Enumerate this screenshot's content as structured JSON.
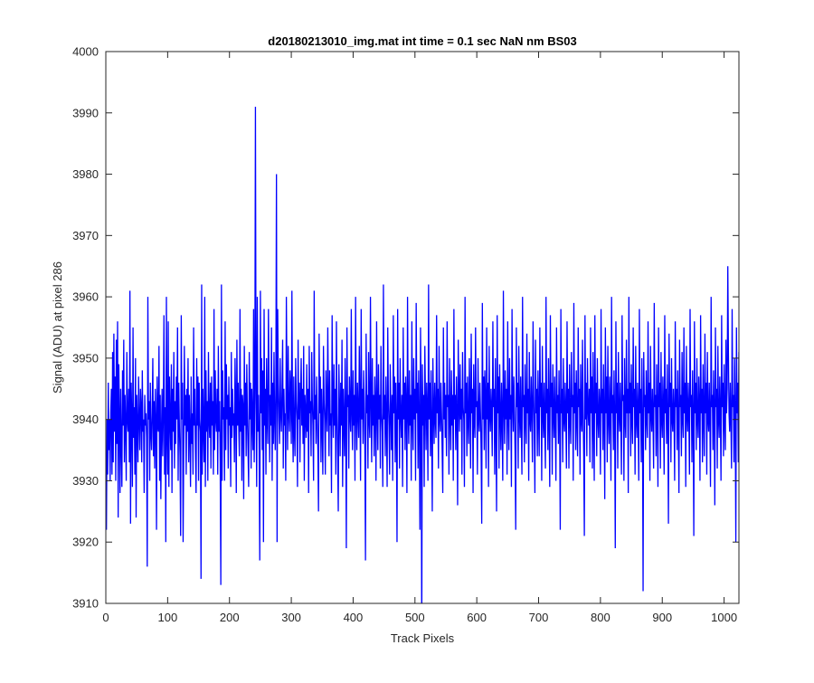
{
  "chart_data": {
    "type": "line",
    "title": "d20180213010_img.mat int time = 0.1 sec  NaN nm BS03",
    "xlabel": "Track Pixels",
    "ylabel": "Signal (ADU) at pixel 286",
    "xlim": [
      0,
      1024
    ],
    "ylim": [
      3910,
      4000
    ],
    "xticks": [
      0,
      100,
      200,
      300,
      400,
      500,
      600,
      700,
      800,
      900,
      1000
    ],
    "yticks": [
      3910,
      3920,
      3930,
      3940,
      3950,
      3960,
      3970,
      3980,
      3990,
      4000
    ],
    "grid": false,
    "legend": "none",
    "series": [
      {
        "color": "#0000ff",
        "x_start": 1,
        "x_step": 1,
        "values": [
          3922,
          3940,
          3931,
          3946,
          3935,
          3940,
          3930,
          3941,
          3945,
          3931,
          3951,
          3933,
          3954,
          3938,
          3947,
          3930,
          3953,
          3936,
          3956,
          3924,
          3949,
          3941,
          3928,
          3945,
          3936,
          3929,
          3948,
          3939,
          3953,
          3933,
          3944,
          3939,
          3930,
          3951,
          3940,
          3938,
          3945,
          3933,
          3961,
          3923,
          3946,
          3940,
          3929,
          3955,
          3937,
          3942,
          3931,
          3950,
          3924,
          3944,
          3939,
          3933,
          3947,
          3940,
          3935,
          3945,
          3942,
          3933,
          3948,
          3938,
          3940,
          3928,
          3944,
          3939,
          3941,
          3937,
          3916,
          3960,
          3940,
          3943,
          3930,
          3946,
          3938,
          3935,
          3941,
          3950,
          3934,
          3943,
          3932,
          3945,
          3940,
          3922,
          3947,
          3939,
          3938,
          3952,
          3930,
          3944,
          3927,
          3938,
          3945,
          3934,
          3941,
          3957,
          3931,
          3942,
          3920,
          3960,
          3938,
          3931,
          3956,
          3929,
          3947,
          3940,
          3935,
          3949,
          3928,
          3945,
          3938,
          3951,
          3932,
          3943,
          3936,
          3947,
          3940,
          3955,
          3930,
          3946,
          3939,
          3934,
          3921,
          3957,
          3940,
          3946,
          3920,
          3935,
          3952,
          3939,
          3944,
          3931,
          3945,
          3938,
          3950,
          3933,
          3944,
          3938,
          3929,
          3947,
          3936,
          3941,
          3931,
          3955,
          3939,
          3945,
          3935,
          3928,
          3950,
          3939,
          3947,
          3930,
          3946,
          3940,
          3938,
          3914,
          3962,
          3931,
          3945,
          3938,
          3933,
          3960,
          3929,
          3948,
          3938,
          3943,
          3930,
          3951,
          3940,
          3937,
          3946,
          3932,
          3947,
          3939,
          3943,
          3931,
          3958,
          3935,
          3948,
          3940,
          3938,
          3945,
          3931,
          3952,
          3938,
          3943,
          3933,
          3913,
          3962,
          3930,
          3948,
          3940,
          3942,
          3930,
          3956,
          3935,
          3949,
          3940,
          3944,
          3932,
          3947,
          3939,
          3942,
          3929,
          3951,
          3937,
          3945,
          3939,
          3941,
          3933,
          3950,
          3943,
          3928,
          3953,
          3939,
          3946,
          3939,
          3934,
          3958,
          3938,
          3945,
          3930,
          3944,
          3942,
          3927,
          3952,
          3939,
          3946,
          3934,
          3949,
          3940,
          3935,
          3929,
          3951,
          3940,
          3946,
          3932,
          3945,
          3940,
          3935,
          3958,
          3933,
          3945,
          3938,
          3943,
          3929,
          3960,
          3938,
          3944,
          3935,
          3917,
          3961,
          3941,
          3950,
          3935,
          3948,
          3920,
          3958,
          3939,
          3945,
          3931,
          3950,
          3940,
          3936,
          3958,
          3946,
          3933,
          3944,
          3939,
          3955,
          3930,
          3946,
          3936,
          3951,
          3940,
          3935,
          3946,
          3941,
          3920,
          3958,
          3946,
          3940,
          3936,
          3950,
          3941,
          3938,
          3945,
          3953,
          3932,
          3945,
          3939,
          3941,
          3930,
          3960,
          3946,
          3935,
          3952,
          3941,
          3938,
          3948,
          3944,
          3936,
          3961,
          3940,
          3933,
          3947,
          3938,
          3934,
          3950,
          3943,
          3940,
          3929,
          3953,
          3940,
          3946,
          3933,
          3944,
          3950,
          3939,
          3945,
          3936,
          3952,
          3930,
          3944,
          3941,
          3937,
          3949,
          3938,
          3945,
          3928,
          3952,
          3941,
          3943,
          3934,
          3951,
          3943,
          3939,
          3930,
          3961,
          3940,
          3944,
          3936,
          3947,
          3940,
          3935,
          3925,
          3954,
          3941,
          3947,
          3933,
          3945,
          3939,
          3931,
          3952,
          3943,
          3940,
          3931,
          3948,
          3942,
          3938,
          3955,
          3944,
          3934,
          3948,
          3939,
          3941,
          3928,
          3957,
          3943,
          3937,
          3949,
          3939,
          3945,
          3931,
          3956,
          3941,
          3934,
          3925,
          3949,
          3942,
          3934,
          3946,
          3939,
          3953,
          3929,
          3945,
          3940,
          3934,
          3950,
          3941,
          3919,
          3955,
          3942,
          3944,
          3932,
          3947,
          3941,
          3938,
          3958,
          3941,
          3935,
          3948,
          3939,
          3944,
          3930,
          3960,
          3941,
          3935,
          3946,
          3941,
          3937,
          3952,
          3942,
          3930,
          3958,
          3940,
          3945,
          3936,
          3948,
          3943,
          3935,
          3917,
          3954,
          3941,
          3944,
          3932,
          3951,
          3940,
          3937,
          3960,
          3943,
          3933,
          3950,
          3939,
          3944,
          3934,
          3947,
          3942,
          3930,
          3956,
          3941,
          3935,
          3949,
          3940,
          3944,
          3932,
          3952,
          3941,
          3938,
          3929,
          3962,
          3940,
          3944,
          3934,
          3947,
          3940,
          3929,
          3955,
          3943,
          3939,
          3931,
          3949,
          3942,
          3935,
          3944,
          3930,
          3957,
          3941,
          3947,
          3933,
          3946,
          3939,
          3920,
          3958,
          3940,
          3946,
          3932,
          3950,
          3941,
          3937,
          3944,
          3929,
          3955,
          3940,
          3946,
          3935,
          3947,
          3942,
          3928,
          3960,
          3941,
          3936,
          3948,
          3939,
          3944,
          3930,
          3956,
          3940,
          3935,
          3950,
          3940,
          3945,
          3930,
          3959,
          3941,
          3946,
          3932,
          3948,
          3940,
          3922,
          3955,
          3943,
          3938,
          3949,
          3939,
          3944,
          3929,
          3952,
          3943,
          3935,
          3946,
          3941,
          3930,
          3962,
          3940,
          3946,
          3934,
          3948,
          3939,
          3925,
          3950,
          3942,
          3936,
          3946,
          3940,
          3937,
          3957,
          3941,
          3945,
          3932,
          3952,
          3940,
          3938,
          3946,
          3941,
          3935,
          3928,
          3955,
          3940,
          3946,
          3937,
          3944,
          3934,
          3956,
          3942,
          3944,
          3931,
          3950,
          3941,
          3935,
          3948,
          3939,
          3944,
          3930,
          3958,
          3940,
          3944,
          3935,
          3947,
          3941,
          3926,
          3953,
          3943,
          3938,
          3949,
          3940,
          3945,
          3931,
          3951,
          3942,
          3940,
          3929,
          3960,
          3941,
          3946,
          3934,
          3947,
          3940,
          3936,
          3950,
          3943,
          3932,
          3954,
          3941,
          3945,
          3928,
          3949,
          3940,
          3937,
          3955,
          3942,
          3943,
          3931,
          3950,
          3940,
          3938,
          3946,
          3941,
          3935,
          3923,
          3959,
          3940,
          3947,
          3935,
          3948,
          3943,
          3932,
          3955,
          3940,
          3946,
          3929,
          3952,
          3941,
          3938,
          3945,
          3941,
          3934,
          3956,
          3942,
          3945,
          3931,
          3950,
          3939,
          3925,
          3957,
          3941,
          3947,
          3932,
          3949,
          3941,
          3935,
          3946,
          3940,
          3930,
          3961,
          3942,
          3936,
          3948,
          3940,
          3945,
          3931,
          3956,
          3941,
          3935,
          3950,
          3940,
          3944,
          3929,
          3958,
          3943,
          3938,
          3947,
          3941,
          3934,
          3922,
          3955,
          3942,
          3946,
          3932,
          3952,
          3941,
          3937,
          3947,
          3939,
          3931,
          3960,
          3942,
          3944,
          3933,
          3949,
          3940,
          3936,
          3954,
          3941,
          3945,
          3930,
          3951,
          3940,
          3938,
          3947,
          3941,
          3933,
          3956,
          3944,
          3938,
          3928,
          3953,
          3941,
          3945,
          3934,
          3948,
          3940,
          3934,
          3955,
          3942,
          3946,
          3930,
          3952,
          3941,
          3937,
          3946,
          3939,
          3932,
          3960,
          3941,
          3945,
          3935,
          3950,
          3940,
          3929,
          3957,
          3942,
          3946,
          3931,
          3949,
          3941,
          3937,
          3947,
          3940,
          3930,
          3955,
          3941,
          3944,
          3936,
          3948,
          3940,
          3922,
          3958,
          3941,
          3945,
          3933,
          3950,
          3940,
          3938,
          3946,
          3941,
          3932,
          3956,
          3941,
          3945,
          3932,
          3949,
          3940,
          3936,
          3951,
          3942,
          3944,
          3930,
          3959,
          3941,
          3946,
          3935,
          3948,
          3940,
          3934,
          3955,
          3942,
          3945,
          3931,
          3949,
          3940,
          3938,
          3953,
          3941,
          3934,
          3921,
          3957,
          3940,
          3946,
          3934,
          3950,
          3942,
          3939,
          3945,
          3933,
          3955,
          3941,
          3947,
          3932,
          3951,
          3940,
          3930,
          3957,
          3941,
          3946,
          3934,
          3950,
          3940,
          3937,
          3945,
          3942,
          3931,
          3958,
          3941,
          3945,
          3935,
          3949,
          3940,
          3927,
          3955,
          3941,
          3947,
          3933,
          3952,
          3940,
          3936,
          3947,
          3942,
          3930,
          3960,
          3941,
          3944,
          3935,
          3948,
          3940,
          3919,
          3956,
          3941,
          3946,
          3932,
          3951,
          3941,
          3938,
          3946,
          3940,
          3931,
          3957,
          3943,
          3944,
          3930,
          3950,
          3940,
          3937,
          3953,
          3941,
          3945,
          3928,
          3960,
          3941,
          3946,
          3934,
          3949,
          3940,
          3936,
          3955,
          3942,
          3945,
          3931,
          3952,
          3940,
          3937,
          3946,
          3941,
          3930,
          3958,
          3941,
          3945,
          3933,
          3950,
          3940,
          3912,
          3951,
          3942,
          3944,
          3935,
          3948,
          3940,
          3937,
          3956,
          3941,
          3946,
          3930,
          3952,
          3941,
          3938,
          3945,
          3940,
          3932,
          3959,
          3942,
          3944,
          3934,
          3949,
          3941,
          3929,
          3955,
          3942,
          3946,
          3932,
          3951,
          3940,
          3937,
          3947,
          3942,
          3931,
          3957,
          3941,
          3945,
          3936,
          3949,
          3940,
          3923,
          3954,
          3942,
          3946,
          3933,
          3950,
          3940,
          3938,
          3945,
          3941,
          3930,
          3956,
          3942,
          3945,
          3935,
          3948,
          3940,
          3928,
          3953,
          3942,
          3944,
          3934,
          3951,
          3940,
          3937,
          3955,
          3941,
          3946,
          3929,
          3952,
          3941,
          3938,
          3946,
          3941,
          3931,
          3958,
          3942,
          3944,
          3933,
          3948,
          3940,
          3921,
          3956,
          3941,
          3946,
          3935,
          3950,
          3940,
          3937,
          3947,
          3942,
          3930,
          3957,
          3941,
          3945,
          3933,
          3949,
          3940,
          3934,
          3954,
          3941,
          3946,
          3931,
          3951,
          3940,
          3938,
          3946,
          3940,
          3929,
          3960,
          3942,
          3944,
          3935,
          3948,
          3941,
          3926,
          3955,
          3942,
          3945,
          3932,
          3952,
          3940,
          3937,
          3947,
          3941,
          3930,
          3957,
          3942,
          3946,
          3934,
          3949,
          3940,
          3935,
          3953,
          3941,
          3945,
          3931,
          3951,
          3941,
          3938,
          3946,
          3940,
          3932,
          3958,
          3942,
          3944,
          3933,
          3950,
          3941,
          3920,
          3955,
          3941,
          3946,
          3933,
          3951,
          3940,
          3937,
          3947,
          3942,
          3931,
          3956,
          3941,
          3945,
          3935,
          3949,
          3940,
          3929,
          3954,
          3942,
          3946,
          3932,
          3952,
          3940,
          3938,
          3946,
          3941,
          3930,
          3959,
          3942,
          3944,
          3934,
          3948,
          3941,
          3925,
          3955,
          3941,
          3946,
          3933,
          3950,
          3940,
          3937,
          3947,
          3941,
          3931,
          3957,
          3942,
          3945,
          3935,
          3949,
          3940,
          3933,
          3953,
          3942,
          3946,
          3930,
          3951,
          3941,
          3938,
          3946,
          3940,
          3932,
          3958,
          3942,
          3944,
          3934,
          3950,
          3941,
          3928,
          3954,
          3941,
          3946,
          3932,
          3952,
          3940,
          3937,
          3947,
          3942,
          3930,
          3956,
          3941,
          3945,
          3933,
          3949,
          3940,
          3921
        ]
      }
    ],
    "annotations": [
      {
        "x": 242,
        "y": 3991
      },
      {
        "x": 276,
        "y": 3980
      },
      {
        "x": 1006,
        "y": 3965
      },
      {
        "x": 511,
        "y": 3905
      }
    ]
  }
}
